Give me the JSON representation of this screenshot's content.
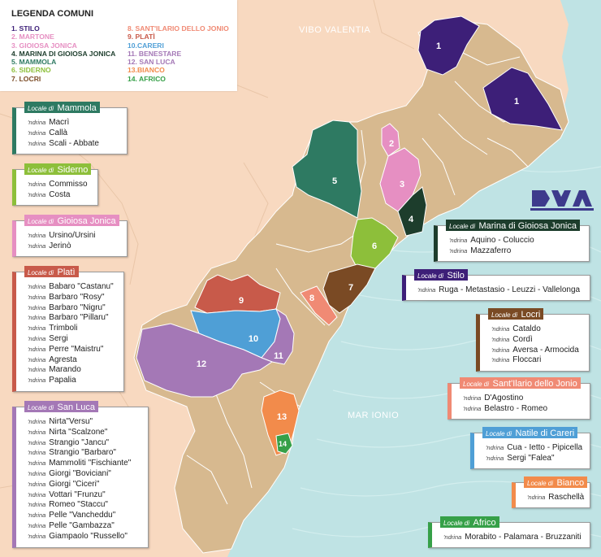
{
  "legend": {
    "title": "LEGENDA COMUNI",
    "left": [
      {
        "label": "1. STILO",
        "color": "#3d1f78"
      },
      {
        "label": "2. MARTONE",
        "color": "#e68fc2"
      },
      {
        "label": "3. GIOIOSA JONICA",
        "color": "#e68fc2"
      },
      {
        "label": "4. MARINA DI GIOIOSA JONICA",
        "color": "#1d3d2c"
      },
      {
        "label": "5. MAMMOLA",
        "color": "#2e7a62"
      },
      {
        "label": "6. SIDERNO",
        "color": "#8dbf3a"
      },
      {
        "label": "7. LOCRI",
        "color": "#7a4a24"
      }
    ],
    "right": [
      {
        "label": "8. SANT'ILARIO DELLO JONIO",
        "color": "#f08a74"
      },
      {
        "label": "9. PLATÌ",
        "color": "#c85a4a"
      },
      {
        "label": "10.CARERI",
        "color": "#4f9fd6"
      },
      {
        "label": "11. BENESTARE",
        "color": "#a478b6"
      },
      {
        "label": "12. SAN LUCA",
        "color": "#a478b6"
      },
      {
        "label": "13.BIANCO",
        "color": "#f28b4b"
      },
      {
        "label": "14. AFRICO",
        "color": "#36a048"
      }
    ]
  },
  "places": {
    "vibo": "VIBO VALENTIA",
    "mar": "MAR IONIO"
  },
  "colors": {
    "sea": "#bfe3e4",
    "land": "#f8d9c0",
    "territory": "#d7b98f",
    "border": "#ffffff"
  },
  "zones": [
    {
      "num": "1",
      "color": "#3d1f78"
    },
    {
      "num": "1",
      "color": "#3d1f78"
    },
    {
      "num": "2",
      "color": "#e68fc2"
    },
    {
      "num": "3",
      "color": "#e68fc2"
    },
    {
      "num": "4",
      "color": "#1d3d2c"
    },
    {
      "num": "5",
      "color": "#2e7a62"
    },
    {
      "num": "6",
      "color": "#8dbf3a"
    },
    {
      "num": "7",
      "color": "#7a4a24"
    },
    {
      "num": "8",
      "color": "#f08a74"
    },
    {
      "num": "9",
      "color": "#c85a4a"
    },
    {
      "num": "10",
      "color": "#4f9fd6"
    },
    {
      "num": "11",
      "color": "#a478b6"
    },
    {
      "num": "12",
      "color": "#a478b6"
    },
    {
      "num": "13",
      "color": "#f28b4b"
    },
    {
      "num": "14",
      "color": "#36a048"
    }
  ],
  "logo": {
    "icon": "dia-logo-icon"
  },
  "locali": {
    "mammola": {
      "prefix": "Locale di",
      "name": "Mammola",
      "color": "#2e7a62",
      "ndrina_label": "'ndrina",
      "ndrine": [
        "Macrì",
        "Callà",
        "Scali - Abbate"
      ]
    },
    "siderno": {
      "prefix": "Locale di",
      "name": "Siderno",
      "color": "#8dbf3a",
      "ndrina_label": "'ndrina",
      "ndrine": [
        "Commisso",
        "Costa"
      ]
    },
    "gioiosa": {
      "prefix": "Locale di",
      "name": "Gioiosa Jonica",
      "color": "#e68fc2",
      "ndrina_label": "'ndrina",
      "ndrine": [
        "Ursino/Ursini",
        "Jerinò"
      ]
    },
    "plati": {
      "prefix": "Locale di",
      "name": "Platì",
      "color": "#c85a4a",
      "ndrina_label": "'ndrina",
      "ndrine": [
        "Babaro \"Castanu\"",
        "Barbaro \"Rosy\"",
        "Barbaro \"Nigru\"",
        "Barbaro \"Pillaru\"",
        "Trimboli",
        "Sergi",
        "Perre \"Maistru\"",
        "Agresta",
        "Marando",
        "Papalia"
      ]
    },
    "sanluca": {
      "prefix": "Locale di",
      "name": "San Luca",
      "color": "#a478b6",
      "ndrina_label": "'ndrina",
      "ndrine": [
        "Nirta\"Versu\"",
        "Nirta \"Scalzone\"",
        "Strangio \"Jancu\"",
        "Strangio \"Barbaro\"",
        "Mammoliti \"Fischiante\"",
        "Giorgi \"Boviciani\"",
        "Giorgi \"Ciceri\"",
        "Vottari \"Frunzu\"",
        "Romeo \"Staccu\"",
        "Pelle \"Vancheddu\"",
        "Pelle \"Gambazza\"",
        "Giampaolo \"Russello\""
      ]
    },
    "marina": {
      "prefix": "Locale di",
      "name": "Marina di Gioiosa Jonica",
      "color": "#1d3d2c",
      "ndrina_label": "'ndrina",
      "ndrine": [
        "Aquino - Coluccio",
        "Mazzaferro"
      ]
    },
    "stilo": {
      "prefix": "Locale di",
      "name": "Stilo",
      "color": "#3d1f78",
      "ndrina_label": "'ndrina",
      "ndrine": [
        "Ruga - Metastasio - Leuzzi - Vallelonga"
      ]
    },
    "locri": {
      "prefix": "Locale di",
      "name": "Locri",
      "color": "#7a4a24",
      "ndrina_label": "'ndrina",
      "ndrine": [
        "Cataldo",
        "Cordì",
        "Aversa - Armocida",
        "Floccari"
      ]
    },
    "santilario": {
      "prefix": "Locale di",
      "name": "Sant'Ilario dello Jonio",
      "color": "#f08a74",
      "ndrina_label": "'ndrina",
      "ndrine": [
        "D'Agostino",
        "Belastro - Romeo"
      ]
    },
    "natile": {
      "prefix": "Locale di",
      "name": "Natile di Careri",
      "color": "#4f9fd6",
      "ndrina_label": "'ndrina",
      "ndrine": [
        "Cua - Ietto - Pipicella",
        "Sergi \"Falea\""
      ]
    },
    "bianco": {
      "prefix": "Locale di",
      "name": "Bianco",
      "color": "#f28b4b",
      "ndrina_label": "'ndrina",
      "ndrine": [
        "Raschellà"
      ]
    },
    "africo": {
      "prefix": "Locale di",
      "name": "Africo",
      "color": "#36a048",
      "ndrina_label": "'ndrina",
      "ndrine": [
        "Morabito - Palamara - Bruzzaniti"
      ]
    }
  }
}
